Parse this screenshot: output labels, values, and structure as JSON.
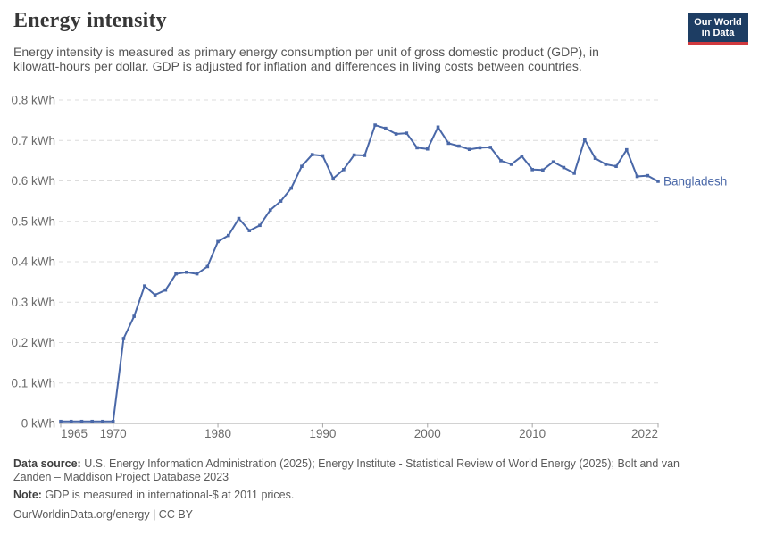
{
  "header": {
    "title": "Energy intensity"
  },
  "logo": {
    "line1": "Our World",
    "line2": "in Data",
    "bg_color": "#1d3d63",
    "accent_color": "#d0393e"
  },
  "subtitle": {
    "lines": [
      "Energy intensity is measured as primary energy consumption per unit of gross domestic product (GDP), in",
      "kilowatt-hours per dollar. GDP is adjusted for inflation and differences in living costs between countries."
    ]
  },
  "chart_data": {
    "type": "line",
    "title": "Energy intensity",
    "unit": "kWh",
    "xlim": [
      1965,
      2022
    ],
    "ylim": [
      0,
      0.8
    ],
    "grid": {
      "horizontal": true,
      "style": "dashed",
      "color": "#dcdcdc"
    },
    "axis_color": "#a6a6a6",
    "tick_label_color": "#6b6b6b",
    "legend_position": "end-of-line-label",
    "x": [
      1965,
      1966,
      1967,
      1968,
      1969,
      1970,
      1971,
      1972,
      1973,
      1974,
      1975,
      1976,
      1977,
      1978,
      1979,
      1980,
      1981,
      1982,
      1983,
      1984,
      1985,
      1986,
      1987,
      1988,
      1989,
      1990,
      1991,
      1992,
      1993,
      1994,
      1995,
      1996,
      1997,
      1998,
      1999,
      2000,
      2001,
      2002,
      2003,
      2004,
      2005,
      2006,
      2007,
      2008,
      2009,
      2010,
      2011,
      2012,
      2013,
      2014,
      2015,
      2016,
      2017,
      2018,
      2019,
      2020,
      2021,
      2022
    ],
    "series": [
      {
        "name": "Bangladesh",
        "color": "#4a68a8",
        "values": [
          0.005,
          0.005,
          0.005,
          0.005,
          0.005,
          0.005,
          0.21,
          0.265,
          0.34,
          0.318,
          0.33,
          0.37,
          0.374,
          0.37,
          0.388,
          0.45,
          0.465,
          0.507,
          0.477,
          0.49,
          0.528,
          0.55,
          0.582,
          0.636,
          0.665,
          0.662,
          0.606,
          0.628,
          0.664,
          0.663,
          0.738,
          0.73,
          0.716,
          0.718,
          0.682,
          0.679,
          0.733,
          0.693,
          0.686,
          0.678,
          0.682,
          0.683,
          0.65,
          0.641,
          0.661,
          0.628,
          0.627,
          0.647,
          0.633,
          0.619,
          0.702,
          0.656,
          0.641,
          0.636,
          0.677,
          0.611,
          0.613,
          0.599
        ]
      }
    ],
    "x_ticks": [
      {
        "value": 1965,
        "label": "1965"
      },
      {
        "value": 1970,
        "label": "1970"
      },
      {
        "value": 1980,
        "label": "1980"
      },
      {
        "value": 1990,
        "label": "1990"
      },
      {
        "value": 2000,
        "label": "2000"
      },
      {
        "value": 2010,
        "label": "2010"
      },
      {
        "value": 2022,
        "label": "2022"
      }
    ],
    "y_ticks": [
      {
        "value": 0,
        "label": "0 kWh"
      },
      {
        "value": 0.1,
        "label": "0.1 kWh"
      },
      {
        "value": 0.2,
        "label": "0.2 kWh"
      },
      {
        "value": 0.3,
        "label": "0.3 kWh"
      },
      {
        "value": 0.4,
        "label": "0.4 kWh"
      },
      {
        "value": 0.5,
        "label": "0.5 kWh"
      },
      {
        "value": 0.6,
        "label": "0.6 kWh"
      },
      {
        "value": 0.7,
        "label": "0.7 kWh"
      },
      {
        "value": 0.8,
        "label": "0.8 kWh"
      }
    ]
  },
  "footer": {
    "source_label": "Data source:",
    "source_lines": [
      "U.S. Energy Information Administration (2025); Energy Institute - Statistical Review of World Energy (2025); Bolt and van",
      "Zanden – Maddison Project Database 2023"
    ],
    "note_label": "Note:",
    "note_text": "GDP is measured in international-$ at 2011 prices.",
    "citation": "OurWorldinData.org/energy | CC BY"
  }
}
